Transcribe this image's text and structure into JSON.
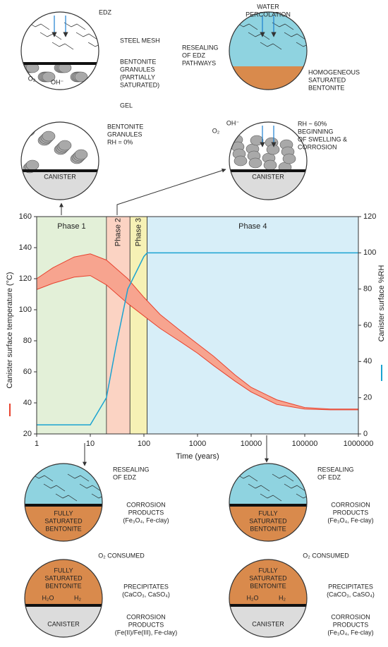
{
  "chart_data": {
    "type": "line",
    "xlabel": "Time (years)",
    "ylabel": "Canister surface temperature (°C)",
    "y2label": "Canister surface %RH",
    "xscale": "log",
    "xlim": [
      1,
      1000000
    ],
    "xticks": [
      1,
      10,
      100,
      1000,
      10000,
      100000,
      1000000
    ],
    "ylim": [
      20,
      160
    ],
    "yticks": [
      20,
      40,
      60,
      80,
      100,
      120,
      140,
      160
    ],
    "y2lim": [
      0,
      120
    ],
    "y2ticks": [
      0,
      20,
      40,
      60,
      80,
      100,
      120
    ],
    "band_fill": "#f7a48f",
    "phases": [
      {
        "label": "Phase 1",
        "start": 1,
        "end": 20,
        "color": "#e3f0d8"
      },
      {
        "label": "Phase 2",
        "start": 20,
        "end": 55,
        "color": "#fbd3c3"
      },
      {
        "label": "Phase 3",
        "start": 55,
        "end": 115,
        "color": "#f6f1b5"
      },
      {
        "label": "Phase 4",
        "start": 115,
        "end": 1000000,
        "color": "#d7eef8"
      }
    ],
    "series": [
      {
        "color": "#e8422e",
        "x": [
          1,
          2,
          5,
          10,
          20,
          50,
          100,
          200,
          500,
          1000,
          2000,
          5000,
          10000,
          30000,
          100000,
          300000,
          1000000
        ],
        "values": [
          120,
          127,
          134,
          136,
          132,
          120,
          108,
          97,
          86,
          78,
          70,
          58,
          50,
          42,
          37,
          36,
          36
        ]
      },
      {
        "color": "#e8422e",
        "x": [
          1,
          2,
          5,
          10,
          20,
          50,
          100,
          200,
          500,
          1000,
          2000,
          5000,
          10000,
          30000,
          100000,
          300000,
          1000000
        ],
        "values": [
          113,
          117,
          121,
          122,
          116,
          104,
          96,
          88,
          79,
          72,
          64,
          54,
          47,
          39,
          36,
          35.5,
          35.5
        ]
      },
      {
        "color": "#1aa3d1",
        "axis": "y2",
        "x": [
          1,
          10,
          20,
          30,
          50,
          100,
          115,
          1000000
        ],
        "values": [
          5,
          5,
          20,
          48,
          80,
          98,
          100,
          100
        ]
      }
    ]
  },
  "diagrams": [
    {
      "labels": [
        [
          "EDZ"
        ],
        [
          "STEEL MESH"
        ],
        [
          "BENTONITE",
          "GRANULES",
          "(PARTIALLY",
          "SATURATED)"
        ],
        [
          "GEL"
        ],
        [
          "O₂"
        ],
        [
          "OH⁻"
        ]
      ]
    },
    {
      "labels": [
        [
          "BENTONITE",
          "GRANULES",
          "RH = 0%"
        ],
        [
          "CANISTER"
        ]
      ]
    },
    {
      "labels": [
        [
          "WATER",
          "PERCOLATION"
        ],
        [
          "RESEALING",
          "OF EDZ",
          "PATHWAYS"
        ],
        [
          "HOMOGENEOUS",
          "SATURATED",
          "BENTONITE"
        ]
      ]
    },
    {
      "labels": [
        [
          "O₂"
        ],
        [
          "OH⁻"
        ],
        [
          "RH ~ 60%",
          "BEGINNING",
          "OF SWELLING &",
          "CORROSION"
        ],
        [
          "CANISTER"
        ]
      ]
    },
    {
      "labels": [
        [
          "RESEALING",
          "OF EDZ"
        ],
        [
          "CORROSION",
          "PRODUCTS",
          "(Fe₃O₄, Fe-clay)"
        ],
        [
          "FULLY",
          "SATURATED",
          "BENTONITE"
        ],
        [
          "O₂ CONSUMED"
        ]
      ]
    },
    {
      "labels": [
        [
          "FULLY",
          "SATURATED",
          "BENTONITE"
        ],
        [
          "H₂O"
        ],
        [
          "H₂"
        ],
        [
          "PRECIPITATES",
          "(CaCO₃, CaSO₄)"
        ],
        [
          "CANISTER"
        ],
        [
          "CORROSION",
          "PRODUCTS",
          "(Fe(II)/Fe(III), Fe-clay)"
        ]
      ]
    },
    {
      "labels": [
        [
          "RESEALING",
          "OF EDZ"
        ],
        [
          "CORROSION",
          "PRODUCTS",
          "(Fe₃O₄, Fe-clay)"
        ],
        [
          "FULLY",
          "SATURATED",
          "BENTONITE"
        ],
        [
          "O₂ CONSUMED"
        ]
      ]
    },
    {
      "labels": [
        [
          "FULLY",
          "SATURATED",
          "BENTONITE"
        ],
        [
          "H₂O"
        ],
        [
          "H₂"
        ],
        [
          "PRECIPITATES",
          "(CaCO₃, CaSO₄)"
        ],
        [
          "CANISTER"
        ],
        [
          "CORROSION",
          "PRODUCTS",
          "(Fe₃O₄, Fe-clay)"
        ]
      ]
    }
  ]
}
